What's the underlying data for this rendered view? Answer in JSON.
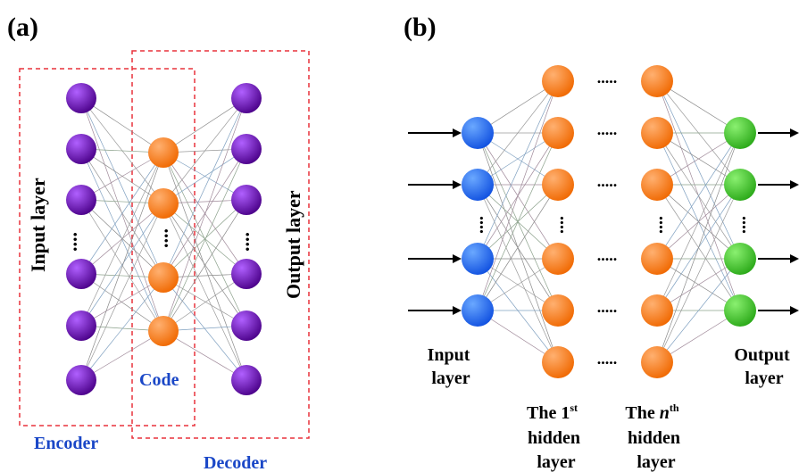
{
  "panel_a": {
    "label": "(a)",
    "input_layer_label": "Input layer",
    "output_layer_label": "Output layer",
    "code_label": "Code",
    "encoder_label": "Encoder",
    "decoder_label": "Decoder",
    "ellipsis": "....",
    "nodes_visible_per_outer_layer": 6,
    "nodes_visible_code_layer": 4
  },
  "panel_b": {
    "label": "(b)",
    "input_label_line1": "Input",
    "input_label_line2": "layer",
    "output_label_line1": "Output",
    "output_label_line2": "layer",
    "hidden1_line1": "The 1",
    "hidden1_sup": "st",
    "hidden1_line2": "hidden",
    "hidden1_line3": "layer",
    "hiddenN_line1": "The ",
    "hiddenN_italic": "n",
    "hiddenN_sup": "th",
    "hiddenN_line2": "hidden",
    "hiddenN_line3": "layer",
    "ellipsis": "....."
  },
  "colors": {
    "purple_node": "#6a0dad",
    "orange_node": "#ff7f1e",
    "blue_node": "#1e6fff",
    "green_node": "#3dd12a",
    "label_blue": "#1a47c7",
    "dashed_box": "#e8323c",
    "edge": "#888888"
  }
}
